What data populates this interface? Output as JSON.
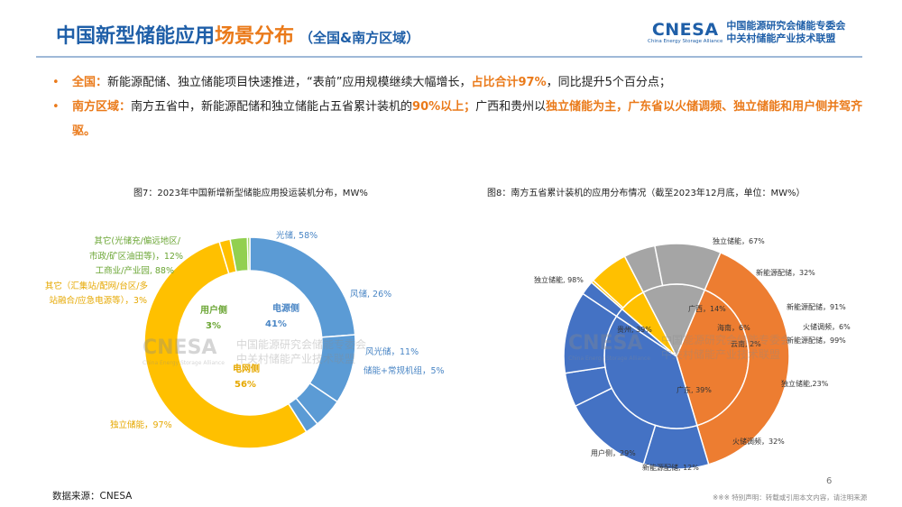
{
  "header": {
    "title_part1": "中国新型储能应用",
    "title_part2": "场景分布",
    "title_sub": "（全国&南方区域）",
    "brand_logo": "CNESA",
    "brand_en": "China Energy Storage Alliance",
    "brand_cn1": "中国能源研究会储能专委会",
    "brand_cn2": "中关村储能产业技术联盟"
  },
  "bullets": {
    "b1_label": "全国：",
    "b1_t1": "新能源配储、独立储能项目快速推进，“表前”应用规模继续大幅增长，",
    "b1_h1": "占比合计97%",
    "b1_t2": "，同比提升5个百分点；",
    "b2_label": "南方区域：",
    "b2_t1": "南方五省中，新能源配储和独立储能占五省累计装机的",
    "b2_h1": "90%以上；",
    "b2_t2": "广西和贵州以",
    "b2_h2": "独立储能为主，广东省以火储调频、独立储能和用户侧并驾齐驱。"
  },
  "colors": {
    "blue": "#5b9bd5",
    "yellow": "#ffc000",
    "green": "#92d050",
    "orange": "#ed7d31",
    "gray": "#a5a5a5",
    "darkblue": "#4472c4",
    "accent_orange": "#ea7a1a",
    "title_blue": "#1f5fa8"
  },
  "chart_data": [
    {
      "type": "pie",
      "subtype": "sunburst",
      "title": "图7：2023年中国新增新型储能应用投运装机分布，MW%",
      "inner": [
        {
          "name": "电源侧",
          "label": "41%",
          "value": 41
        },
        {
          "name": "电网侧",
          "label": "56%",
          "value": 56
        },
        {
          "name": "用户侧",
          "label": "3%",
          "value": 3
        }
      ],
      "outer": [
        {
          "name": "光储",
          "parent": "电源侧",
          "label": "58%",
          "share": 58
        },
        {
          "name": "风储",
          "parent": "电源侧",
          "label": "26%",
          "share": 26
        },
        {
          "name": "风光储",
          "parent": "电源侧",
          "label": "11%",
          "share": 11
        },
        {
          "name": "储能+常规机组",
          "parent": "电源侧",
          "label": "5%",
          "share": 5
        },
        {
          "name": "独立储能",
          "parent": "电网侧",
          "label": "97%",
          "share": 97
        },
        {
          "name": "其它（汇集站/配网/台区/多站融合/应急电源等）",
          "parent": "电网侧",
          "label": "3%",
          "share": 3
        },
        {
          "name": "工商业/产业园",
          "parent": "用户侧",
          "label": "88%",
          "share": 88
        },
        {
          "name": "其它(光储充/偏远地区/市政/矿区油田等)",
          "parent": "用户侧",
          "label": "12%",
          "share": 12
        }
      ],
      "labels": {
        "inner_power": "电源侧",
        "inner_power_v": "41%",
        "inner_grid": "电网侧",
        "inner_grid_v": "56%",
        "inner_user": "用户侧",
        "inner_user_v": "3%",
        "o_pv": "光储, 58%",
        "o_wind": "风储, 26%",
        "o_windpv": "风光储，11%",
        "o_thermal": "储能+常规机组，5%",
        "o_indep": "独立储能，97%",
        "o_gridother_1": "其它（汇集站/配网/台区/多",
        "o_gridother_2": "站融合/应急电源等），3%",
        "o_ci": "工商业/产业园, 88%",
        "o_userother_1": "其它(光储充/偏远地区/",
        "o_userother_2": "市政/矿区油田等)，12%"
      }
    },
    {
      "type": "pie",
      "subtype": "sunburst",
      "title": "图8：南方五省累计装机的应用分布情况（截至2023年12月底，单位：MW%）",
      "inner": [
        {
          "name": "贵州",
          "label": "39%",
          "value": 39
        },
        {
          "name": "广东",
          "label": "39%",
          "value": 39
        },
        {
          "name": "云南",
          "label": "2%",
          "value": 2
        },
        {
          "name": "海南",
          "label": "6%",
          "value": 6
        },
        {
          "name": "广西",
          "label": "14%",
          "value": 14
        }
      ],
      "outer": [
        {
          "name": "独立储能",
          "parent": "贵州",
          "label": "98%",
          "share": 98
        },
        {
          "name": "独立储能",
          "parent": "广东",
          "label": "23%",
          "share": 23
        },
        {
          "name": "火储调频",
          "parent": "广东",
          "label": "32%",
          "share": 32
        },
        {
          "name": "新能源配储",
          "parent": "广东",
          "label": "12%",
          "share": 12
        },
        {
          "name": "用户侧",
          "parent": "广东",
          "label": "29%",
          "share": 29
        },
        {
          "name": "新能源配储",
          "parent": "云南",
          "label": "99%",
          "share": 99
        },
        {
          "name": "火储调频",
          "parent": "海南",
          "label": "6%",
          "share": 6
        },
        {
          "name": "新能源配储",
          "parent": "海南",
          "label": "91%",
          "share": 91
        },
        {
          "name": "新能源配储",
          "parent": "广西",
          "label": "32%",
          "share": 32
        },
        {
          "name": "独立储能",
          "parent": "广西",
          "label": "67%",
          "share": 67
        }
      ],
      "labels": {
        "in_gz": "贵州, 39%",
        "in_gd": "广东, 39%",
        "in_yn": "云南, 2%",
        "in_hn": "海南，6%",
        "in_gx": "广西，14%",
        "o_gz_indep": "独立储能, 98%",
        "o_gd_indep": "独立储能,23%",
        "o_gd_thermal": "火储调频，32%",
        "o_gd_ne": "新能源配储, 12%",
        "o_gd_user": "用户侧，29%",
        "o_yn_ne": "新能源配储，99%",
        "o_hn_thermal": "火储调频，6%",
        "o_hn_ne": "新能源配储，91%",
        "o_gx_ne": "新能源配储，32%",
        "o_gx_indep": "独立储能，67%"
      }
    }
  ],
  "watermark": {
    "logo": "CNESA",
    "en": "China Energy Storage Alliance",
    "cn1": "中国能源研究会储能专委会",
    "cn2": "中关村储能产业技术联盟"
  },
  "footer": {
    "source": "数据来源：CNESA",
    "page": "6",
    "disclaimer": "※※※ 特别声明：转载或引用本文内容，请注明来源"
  }
}
